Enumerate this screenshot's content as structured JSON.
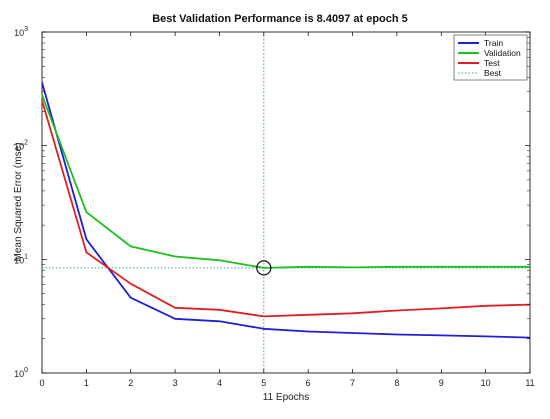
{
  "chart_data": {
    "type": "line",
    "title": "Best Validation Performance is 8.4097 at epoch 5",
    "xlabel": "11 Epochs",
    "ylabel": "Mean Squared Error  (mse)",
    "xlim": [
      0,
      11
    ],
    "ylim": [
      1,
      1000
    ],
    "y_scale": "log",
    "x_ticks": [
      "0",
      "1",
      "2",
      "3",
      "4",
      "5",
      "6",
      "7",
      "8",
      "9",
      "10",
      "11"
    ],
    "y_ticks": [
      {
        "base": "10",
        "exp": "0",
        "value": 1
      },
      {
        "base": "10",
        "exp": "1",
        "value": 10
      },
      {
        "base": "10",
        "exp": "2",
        "value": 100
      },
      {
        "base": "10",
        "exp": "3",
        "value": 1000
      }
    ],
    "grid": false,
    "legend_position": "top-right",
    "series": [
      {
        "name": "Train",
        "color": "#1f1fd6",
        "x": [
          0,
          1,
          2,
          3,
          4,
          5,
          6,
          7,
          8,
          9,
          10,
          11
        ],
        "values": [
          360,
          15,
          4.6,
          3.0,
          2.85,
          2.45,
          2.32,
          2.25,
          2.18,
          2.14,
          2.1,
          2.05
        ]
      },
      {
        "name": "Validation",
        "color": "#1fbf1f",
        "x": [
          0,
          1,
          2,
          3,
          4,
          5,
          6,
          7,
          8,
          9,
          10,
          11
        ],
        "values": [
          280,
          26,
          13,
          10.6,
          9.8,
          8.4097,
          8.6,
          8.5,
          8.6,
          8.6,
          8.6,
          8.6
        ]
      },
      {
        "name": "Test",
        "color": "#e02020",
        "x": [
          0,
          1,
          2,
          3,
          4,
          5,
          6,
          7,
          8,
          9,
          10,
          11
        ],
        "values": [
          250,
          11.5,
          6.1,
          3.75,
          3.6,
          3.15,
          3.25,
          3.35,
          3.55,
          3.7,
          3.9,
          4.0
        ]
      }
    ],
    "best": {
      "name": "Best",
      "color": "#33a6a6",
      "epoch": 5,
      "value": 8.4097
    }
  }
}
